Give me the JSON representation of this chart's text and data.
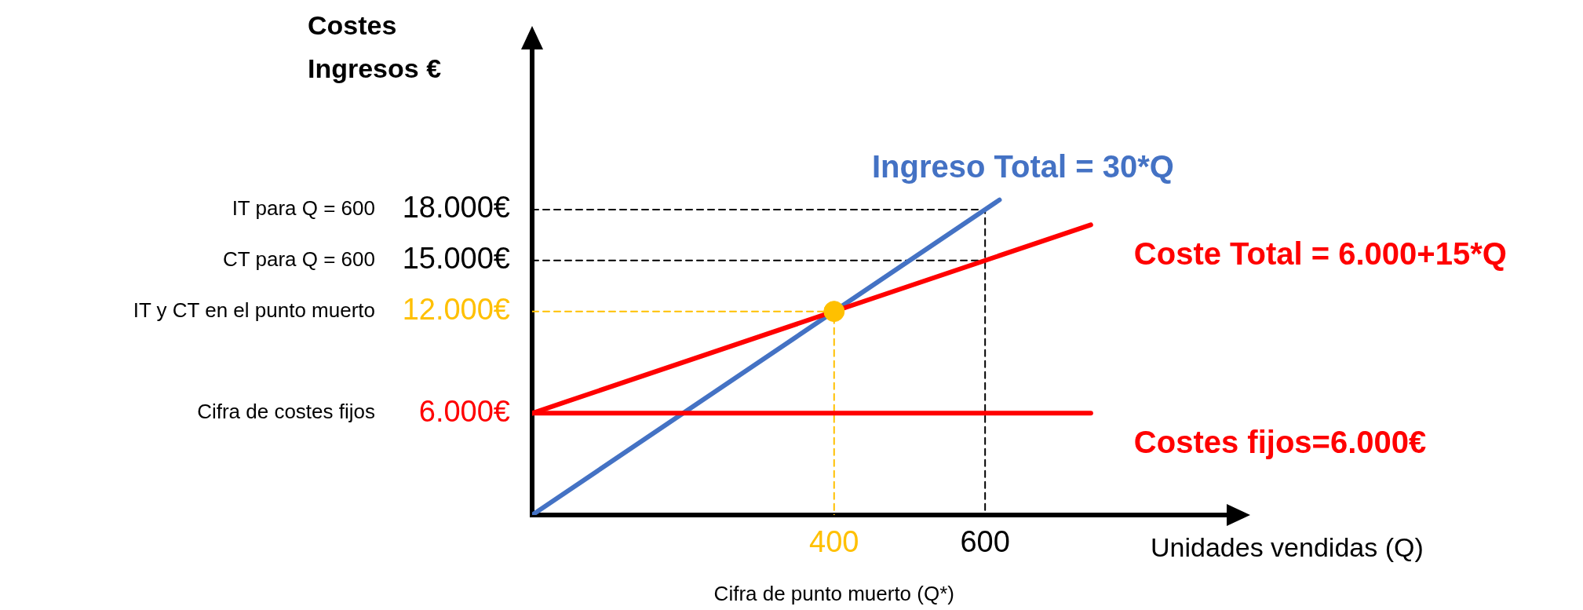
{
  "chart_data": {
    "type": "line",
    "ylabel": "Costes\nIngresos €",
    "xlabel": "Unidades vendidas (Q)",
    "xlim": [
      0,
      920
    ],
    "ylim": [
      0,
      28000
    ],
    "xticks": [
      400,
      600
    ],
    "yticks": [
      {
        "value": 6000,
        "label": "6.000€"
      },
      {
        "value": 12000,
        "label": "12.000€"
      },
      {
        "value": 15000,
        "label": "15.000€"
      },
      {
        "value": 18000,
        "label": "18.000€"
      }
    ],
    "grid": false,
    "legend": false,
    "marker": "none",
    "line_style": "solid",
    "series": [
      {
        "color": "#000000",
        "line_style": "dashed",
        "x": [
          0,
          600,
          600
        ],
        "values": [
          18000,
          18000,
          0
        ]
      },
      {
        "color": "#000000",
        "line_style": "dashed",
        "x": [
          0,
          600
        ],
        "values": [
          15000,
          15000
        ]
      },
      {
        "color": "#ffc000",
        "line_style": "dashed",
        "x": [
          0,
          400,
          400
        ],
        "values": [
          12000,
          12000,
          0
        ]
      },
      {
        "name": "Ingreso Total = 30*Q",
        "color": "#4472c4",
        "x": [
          0,
          619
        ],
        "values": [
          0,
          18570
        ]
      },
      {
        "name": "Coste Total = 6.000+15*Q",
        "color": "#ff0000",
        "x": [
          0,
          740
        ],
        "values": [
          6000,
          17100
        ]
      },
      {
        "name": "Costes fijos=6.000€",
        "color": "#ff0000",
        "x": [
          0,
          740
        ],
        "values": [
          6000,
          6000
        ]
      },
      {
        "type": "scatter",
        "color": "#ffc000",
        "marker": "circle",
        "x": [
          400
        ],
        "values": [
          12000
        ]
      }
    ],
    "annotations": [
      "IT para Q = 600",
      "CT para Q = 600",
      "IT y CT en el punto muerto",
      "Cifra de costes fijos",
      "Cifra de punto muerto (Q*)"
    ]
  }
}
